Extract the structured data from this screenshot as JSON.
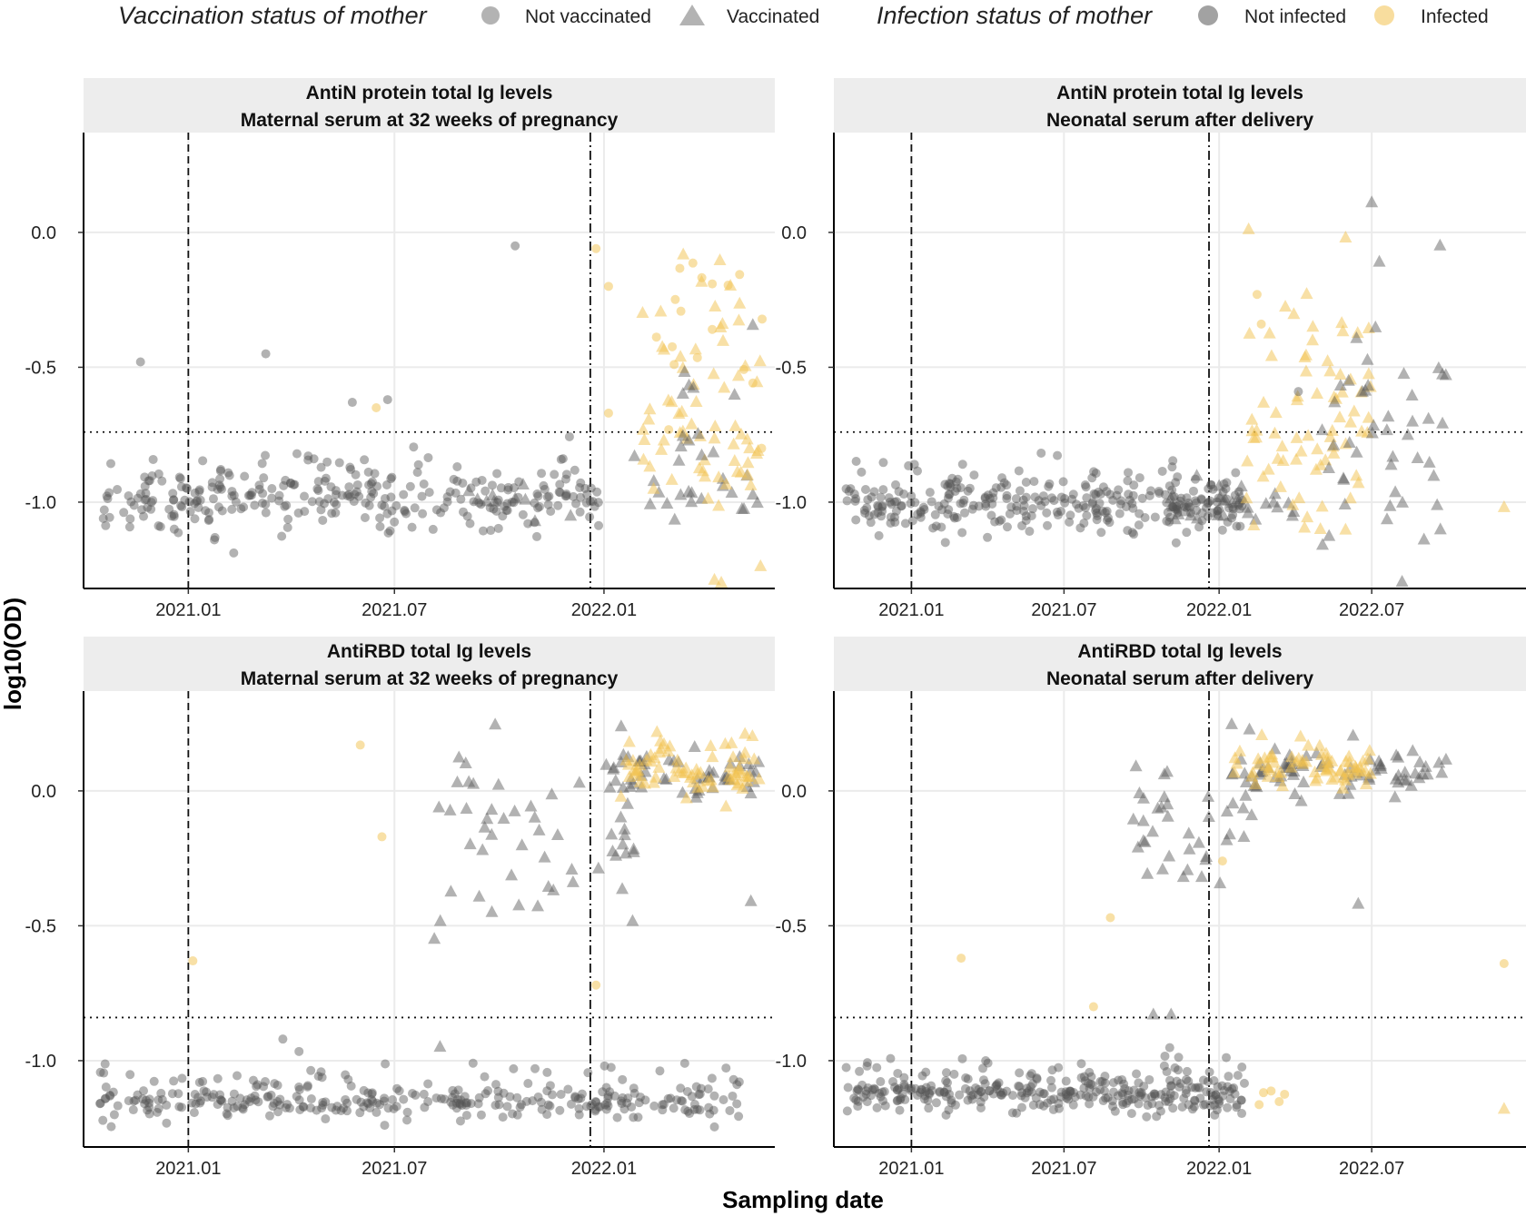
{
  "legend": {
    "vaccination_title": "Vaccination status of mother",
    "not_vaccinated": "Not vaccinated",
    "vaccinated": "Vaccinated",
    "infection_title": "Infection status of mother",
    "not_infected": "Not infected",
    "infected": "Infected"
  },
  "axes": {
    "xlabel": "Sampling date",
    "ylabel": "log10(OD)"
  },
  "colors": {
    "not_infected": "#555555",
    "infected": "#f2c14e",
    "strip_bg": "#ededed",
    "grid": "#ebebeb"
  },
  "chart_data": [
    {
      "type": "scatter",
      "title": "AntiN protein total Ig levels",
      "subtitle": "Maternal serum at 32 weeks of pregnancy",
      "xlim": [
        "2020-10-01",
        "2022-05-31"
      ],
      "ylim": [
        -1.32,
        0.37
      ],
      "x_ticks": [
        {
          "date": "2021-01-01",
          "label": "2021.01"
        },
        {
          "date": "2021-07-01",
          "label": "2021.07"
        },
        {
          "date": "2022-01-01",
          "label": "2022.01"
        }
      ],
      "y_ticks": [
        {
          "value": 0,
          "label": "0.0"
        },
        {
          "value": -0.5,
          "label": "-0.5"
        },
        {
          "value": -1,
          "label": "-1.0"
        }
      ],
      "vlines": [
        {
          "date": "2021-01-01",
          "style": "dashed"
        },
        {
          "date": "2021-12-20",
          "style": "dashdot"
        }
      ],
      "hline": {
        "value": -0.74,
        "style": "dotted"
      },
      "special_points": [
        {
          "date": "2020-11-20",
          "y": -0.48,
          "shape": "circle",
          "infected": false
        },
        {
          "date": "2021-03-10",
          "y": -0.45,
          "shape": "circle",
          "infected": false
        },
        {
          "date": "2021-05-25",
          "y": -0.63,
          "shape": "circle",
          "infected": false
        },
        {
          "date": "2021-06-25",
          "y": -0.62,
          "shape": "circle",
          "infected": false
        },
        {
          "date": "2021-06-15",
          "y": -0.65,
          "shape": "circle",
          "infected": true
        },
        {
          "date": "2021-10-15",
          "y": -0.05,
          "shape": "circle",
          "infected": false
        },
        {
          "date": "2021-12-25",
          "y": -0.06,
          "shape": "circle",
          "infected": true
        },
        {
          "date": "2022-01-05",
          "y": -0.2,
          "shape": "circle",
          "infected": true
        },
        {
          "date": "2022-01-05",
          "y": -0.67,
          "shape": "circle",
          "infected": true
        }
      ],
      "series": [
        {
          "name": "Baseline (not vaccinated, not infected)",
          "from": "2020-10-15",
          "to": "2021-12-28",
          "center": -0.99,
          "spread": 0.06,
          "outlier_rate": 0.22,
          "outlier_span": 0.14,
          "shape": "circle",
          "infected": false,
          "count": 300
        },
        {
          "name": "Vaccinated baseline",
          "from": "2021-09-01",
          "to": "2022-05-20",
          "center": -0.98,
          "spread": 0.05,
          "outlier_rate": 0.0,
          "outlier_span": 0.0,
          "shape": "triangle",
          "infected": false,
          "count": 30
        },
        {
          "name": "Post-Omicron infected (triangles)",
          "from": "2022-02-01",
          "to": "2022-05-20",
          "center": -0.8,
          "spread": 0.22,
          "outlier_rate": 0.25,
          "outlier_span": 0.6,
          "shape": "triangle",
          "infected": true,
          "count": 70
        },
        {
          "name": "Post-Omicron infected (circles)",
          "from": "2022-02-15",
          "to": "2022-05-20",
          "center": -0.55,
          "spread": 0.18,
          "outlier_rate": 0.2,
          "outlier_span": 0.4,
          "shape": "circle",
          "infected": true,
          "count": 18
        },
        {
          "name": "Post-Omicron vaccinated high",
          "from": "2022-03-01",
          "to": "2022-05-20",
          "center": -0.65,
          "spread": 0.2,
          "outlier_rate": 0.1,
          "outlier_span": 0.4,
          "shape": "triangle",
          "infected": false,
          "count": 12
        }
      ]
    },
    {
      "type": "scatter",
      "title": "AntiN protein total Ig levels",
      "subtitle": "Neonatal serum after delivery",
      "xlim": [
        "2020-10-01",
        "2022-12-31"
      ],
      "ylim": [
        -1.32,
        0.37
      ],
      "x_ticks": [
        {
          "date": "2021-01-01",
          "label": "2021.01"
        },
        {
          "date": "2021-07-01",
          "label": "2021.07"
        },
        {
          "date": "2022-01-01",
          "label": "2022.01"
        },
        {
          "date": "2022-07-01",
          "label": "2022.07"
        }
      ],
      "y_ticks": [
        {
          "value": 0,
          "label": "0.0"
        },
        {
          "value": -0.5,
          "label": "-0.5"
        },
        {
          "value": -1,
          "label": "-1.0"
        }
      ],
      "vlines": [
        {
          "date": "2021-01-01",
          "style": "dashed"
        },
        {
          "date": "2021-12-20",
          "style": "dashdot"
        }
      ],
      "hline": {
        "value": -0.74,
        "style": "dotted"
      },
      "special_points": [
        {
          "date": "2022-02-15",
          "y": -0.23,
          "shape": "circle",
          "infected": true
        },
        {
          "date": "2022-02-20",
          "y": -0.34,
          "shape": "circle",
          "infected": true
        },
        {
          "date": "2022-02-05",
          "y": 0.01,
          "shape": "triangle",
          "infected": true
        },
        {
          "date": "2022-04-05",
          "y": -0.59,
          "shape": "circle",
          "infected": false
        },
        {
          "date": "2022-07-01",
          "y": 0.11,
          "shape": "triangle",
          "infected": false
        },
        {
          "date": "2022-07-10",
          "y": -0.11,
          "shape": "triangle",
          "infected": false
        },
        {
          "date": "2022-09-20",
          "y": -0.05,
          "shape": "triangle",
          "infected": false
        },
        {
          "date": "2022-12-05",
          "y": -1.02,
          "shape": "triangle",
          "infected": true
        }
      ],
      "series": [
        {
          "name": "Baseline (not vaccinated, not infected)",
          "from": "2020-10-15",
          "to": "2022-01-31",
          "center": -1.01,
          "spread": 0.05,
          "outlier_rate": 0.2,
          "outlier_span": 0.14,
          "shape": "circle",
          "infected": false,
          "count": 310
        },
        {
          "name": "Vaccinated baseline",
          "from": "2021-11-01",
          "to": "2022-03-31",
          "center": -1.02,
          "spread": 0.04,
          "outlier_rate": 0.1,
          "outlier_span": 0.1,
          "shape": "triangle",
          "infected": false,
          "count": 30
        },
        {
          "name": "Post-Omicron infected (triangles)",
          "from": "2022-02-01",
          "to": "2022-06-30",
          "center": -0.75,
          "spread": 0.22,
          "outlier_rate": 0.25,
          "outlier_span": 0.55,
          "shape": "triangle",
          "infected": true,
          "count": 75
        },
        {
          "name": "Post-Omicron vaccinated",
          "from": "2022-05-01",
          "to": "2022-09-30",
          "center": -0.75,
          "spread": 0.2,
          "outlier_rate": 0.1,
          "outlier_span": 0.4,
          "shape": "triangle",
          "infected": false,
          "count": 45
        }
      ]
    },
    {
      "type": "scatter",
      "title": "AntiRBD total Ig levels",
      "subtitle": "Maternal serum at 32 weeks of pregnancy",
      "xlim": [
        "2020-10-01",
        "2022-05-31"
      ],
      "ylim": [
        -1.32,
        0.37
      ],
      "x_ticks": [
        {
          "date": "2021-01-01",
          "label": "2021.01"
        },
        {
          "date": "2021-07-01",
          "label": "2021.07"
        },
        {
          "date": "2022-01-01",
          "label": "2022.01"
        }
      ],
      "y_ticks": [
        {
          "value": 0,
          "label": "0.0"
        },
        {
          "value": -0.5,
          "label": "-0.5"
        },
        {
          "value": -1,
          "label": "-1.0"
        }
      ],
      "vlines": [
        {
          "date": "2021-01-01",
          "style": "dashed"
        },
        {
          "date": "2021-12-20",
          "style": "dashdot"
        }
      ],
      "hline": {
        "value": -0.84,
        "style": "dotted"
      },
      "special_points": [
        {
          "date": "2021-01-05",
          "y": -0.63,
          "shape": "circle",
          "infected": true
        },
        {
          "date": "2021-06-01",
          "y": 0.17,
          "shape": "circle",
          "infected": true
        },
        {
          "date": "2021-06-20",
          "y": -0.17,
          "shape": "circle",
          "infected": true
        },
        {
          "date": "2021-08-05",
          "y": -0.55,
          "shape": "triangle",
          "infected": false
        },
        {
          "date": "2021-08-10",
          "y": -0.95,
          "shape": "triangle",
          "infected": false
        },
        {
          "date": "2021-03-25",
          "y": -0.92,
          "shape": "circle",
          "infected": false
        },
        {
          "date": "2021-12-25",
          "y": -0.72,
          "shape": "circle",
          "infected": true
        },
        {
          "date": "2022-05-10",
          "y": -0.41,
          "shape": "triangle",
          "infected": false
        }
      ],
      "series": [
        {
          "name": "Baseline (not vaccinated, not infected)",
          "from": "2020-10-15",
          "to": "2022-04-30",
          "center": -1.16,
          "spread": 0.03,
          "outlier_rate": 0.3,
          "outlier_span": 0.12,
          "shape": "circle",
          "infected": false,
          "count": 320
        },
        {
          "name": "Vaccinated rising",
          "from": "2021-08-01",
          "to": "2022-01-31",
          "center": -0.15,
          "spread": 0.17,
          "outlier_rate": 0.15,
          "outlier_span": 0.3,
          "shape": "triangle",
          "infected": false,
          "count": 55
        },
        {
          "name": "Vaccinated plateau",
          "from": "2022-01-01",
          "to": "2022-05-20",
          "center": 0.05,
          "spread": 0.05,
          "outlier_rate": 0.1,
          "outlier_span": 0.15,
          "shape": "triangle",
          "infected": false,
          "count": 50
        },
        {
          "name": "Infected plateau",
          "from": "2022-01-15",
          "to": "2022-05-20",
          "center": 0.07,
          "spread": 0.05,
          "outlier_rate": 0.1,
          "outlier_span": 0.12,
          "shape": "triangle",
          "infected": true,
          "count": 75
        }
      ]
    },
    {
      "type": "scatter",
      "title": "AntiRBD total Ig levels",
      "subtitle": "Neonatal serum after delivery",
      "xlim": [
        "2020-10-01",
        "2022-12-31"
      ],
      "ylim": [
        -1.32,
        0.37
      ],
      "x_ticks": [
        {
          "date": "2021-01-01",
          "label": "2021.01"
        },
        {
          "date": "2021-07-01",
          "label": "2021.07"
        },
        {
          "date": "2022-01-01",
          "label": "2022.01"
        },
        {
          "date": "2022-07-01",
          "label": "2022.07"
        }
      ],
      "y_ticks": [
        {
          "value": 0,
          "label": "0.0"
        },
        {
          "value": -0.5,
          "label": "-0.5"
        },
        {
          "value": -1,
          "label": "-1.0"
        }
      ],
      "vlines": [
        {
          "date": "2021-01-01",
          "style": "dashed"
        },
        {
          "date": "2021-12-20",
          "style": "dashdot"
        }
      ],
      "hline": {
        "value": -0.84,
        "style": "dotted"
      },
      "special_points": [
        {
          "date": "2021-03-01",
          "y": -0.62,
          "shape": "circle",
          "infected": true
        },
        {
          "date": "2021-08-25",
          "y": -0.47,
          "shape": "circle",
          "infected": true
        },
        {
          "date": "2021-08-05",
          "y": -0.8,
          "shape": "circle",
          "infected": true
        },
        {
          "date": "2021-10-15",
          "y": -0.83,
          "shape": "triangle",
          "infected": false
        },
        {
          "date": "2021-11-05",
          "y": -0.83,
          "shape": "triangle",
          "infected": false
        },
        {
          "date": "2022-01-05",
          "y": -0.26,
          "shape": "circle",
          "infected": true
        },
        {
          "date": "2022-06-15",
          "y": -0.42,
          "shape": "triangle",
          "infected": false
        },
        {
          "date": "2022-12-05",
          "y": -0.64,
          "shape": "circle",
          "infected": true
        },
        {
          "date": "2022-12-05",
          "y": -1.18,
          "shape": "triangle",
          "infected": true
        }
      ],
      "series": [
        {
          "name": "Baseline (not vaccinated, not infected)",
          "from": "2020-10-15",
          "to": "2022-01-31",
          "center": -1.13,
          "spread": 0.03,
          "outlier_rate": 0.25,
          "outlier_span": 0.12,
          "shape": "circle",
          "infected": false,
          "count": 320
        },
        {
          "name": "Vaccinated rising",
          "from": "2021-09-15",
          "to": "2022-02-10",
          "center": -0.12,
          "spread": 0.15,
          "outlier_rate": 0.2,
          "outlier_span": 0.25,
          "shape": "triangle",
          "infected": false,
          "count": 40
        },
        {
          "name": "Vaccinated plateau",
          "from": "2022-01-15",
          "to": "2022-09-30",
          "center": 0.06,
          "spread": 0.04,
          "outlier_rate": 0.1,
          "outlier_span": 0.12,
          "shape": "triangle",
          "infected": false,
          "count": 75
        },
        {
          "name": "Infected plateau",
          "from": "2022-01-15",
          "to": "2022-06-30",
          "center": 0.08,
          "spread": 0.04,
          "outlier_rate": 0.1,
          "outlier_span": 0.12,
          "shape": "triangle",
          "infected": true,
          "count": 70
        },
        {
          "name": "Infected low",
          "from": "2022-01-10",
          "to": "2022-03-31",
          "center": -1.12,
          "spread": 0.02,
          "outlier_rate": 0.0,
          "outlier_span": 0.0,
          "shape": "circle",
          "infected": true,
          "count": 5
        }
      ]
    }
  ]
}
